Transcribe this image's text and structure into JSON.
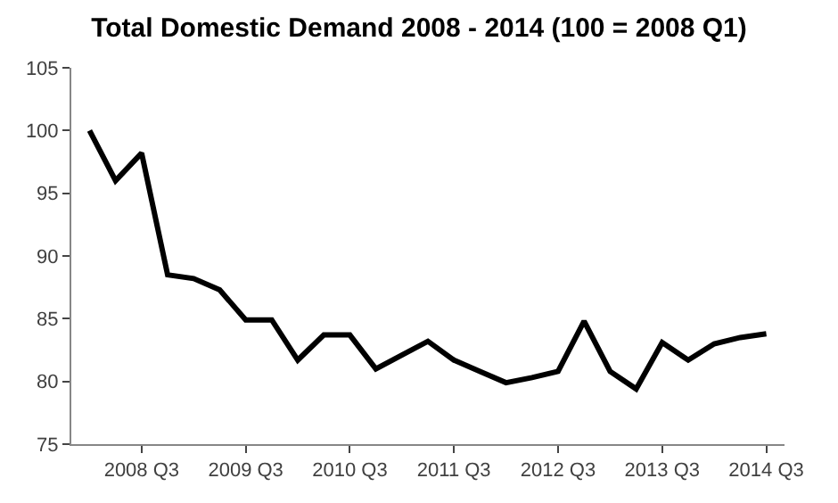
{
  "chart_data": {
    "type": "line",
    "title": "Total Domestic Demand 2008 - 2014 (100 = 2008 Q1)",
    "categories": [
      null,
      null,
      "2008 Q3",
      null,
      null,
      null,
      "2009 Q3",
      null,
      null,
      null,
      "2010 Q3",
      null,
      null,
      null,
      "2011 Q3",
      null,
      null,
      null,
      "2012 Q3",
      null,
      null,
      null,
      "2013 Q3",
      null,
      null,
      null,
      "2014 Q3"
    ],
    "series": [
      {
        "color": "#000000",
        "values": [
          100,
          96,
          98.2,
          88.5,
          88.2,
          87.3,
          84.9,
          84.9,
          81.7,
          83.7,
          83.7,
          81.0,
          82.1,
          83.2,
          81.7,
          80.8,
          79.9,
          80.3,
          80.8,
          84.8,
          80.8,
          79.4,
          83.1,
          81.7,
          83.0,
          83.5,
          83.8
        ]
      }
    ],
    "ylim": [
      75,
      105
    ],
    "yticks": [
      75,
      80,
      85,
      90,
      95,
      100,
      105
    ],
    "marker": "none",
    "line_style": "solid"
  }
}
